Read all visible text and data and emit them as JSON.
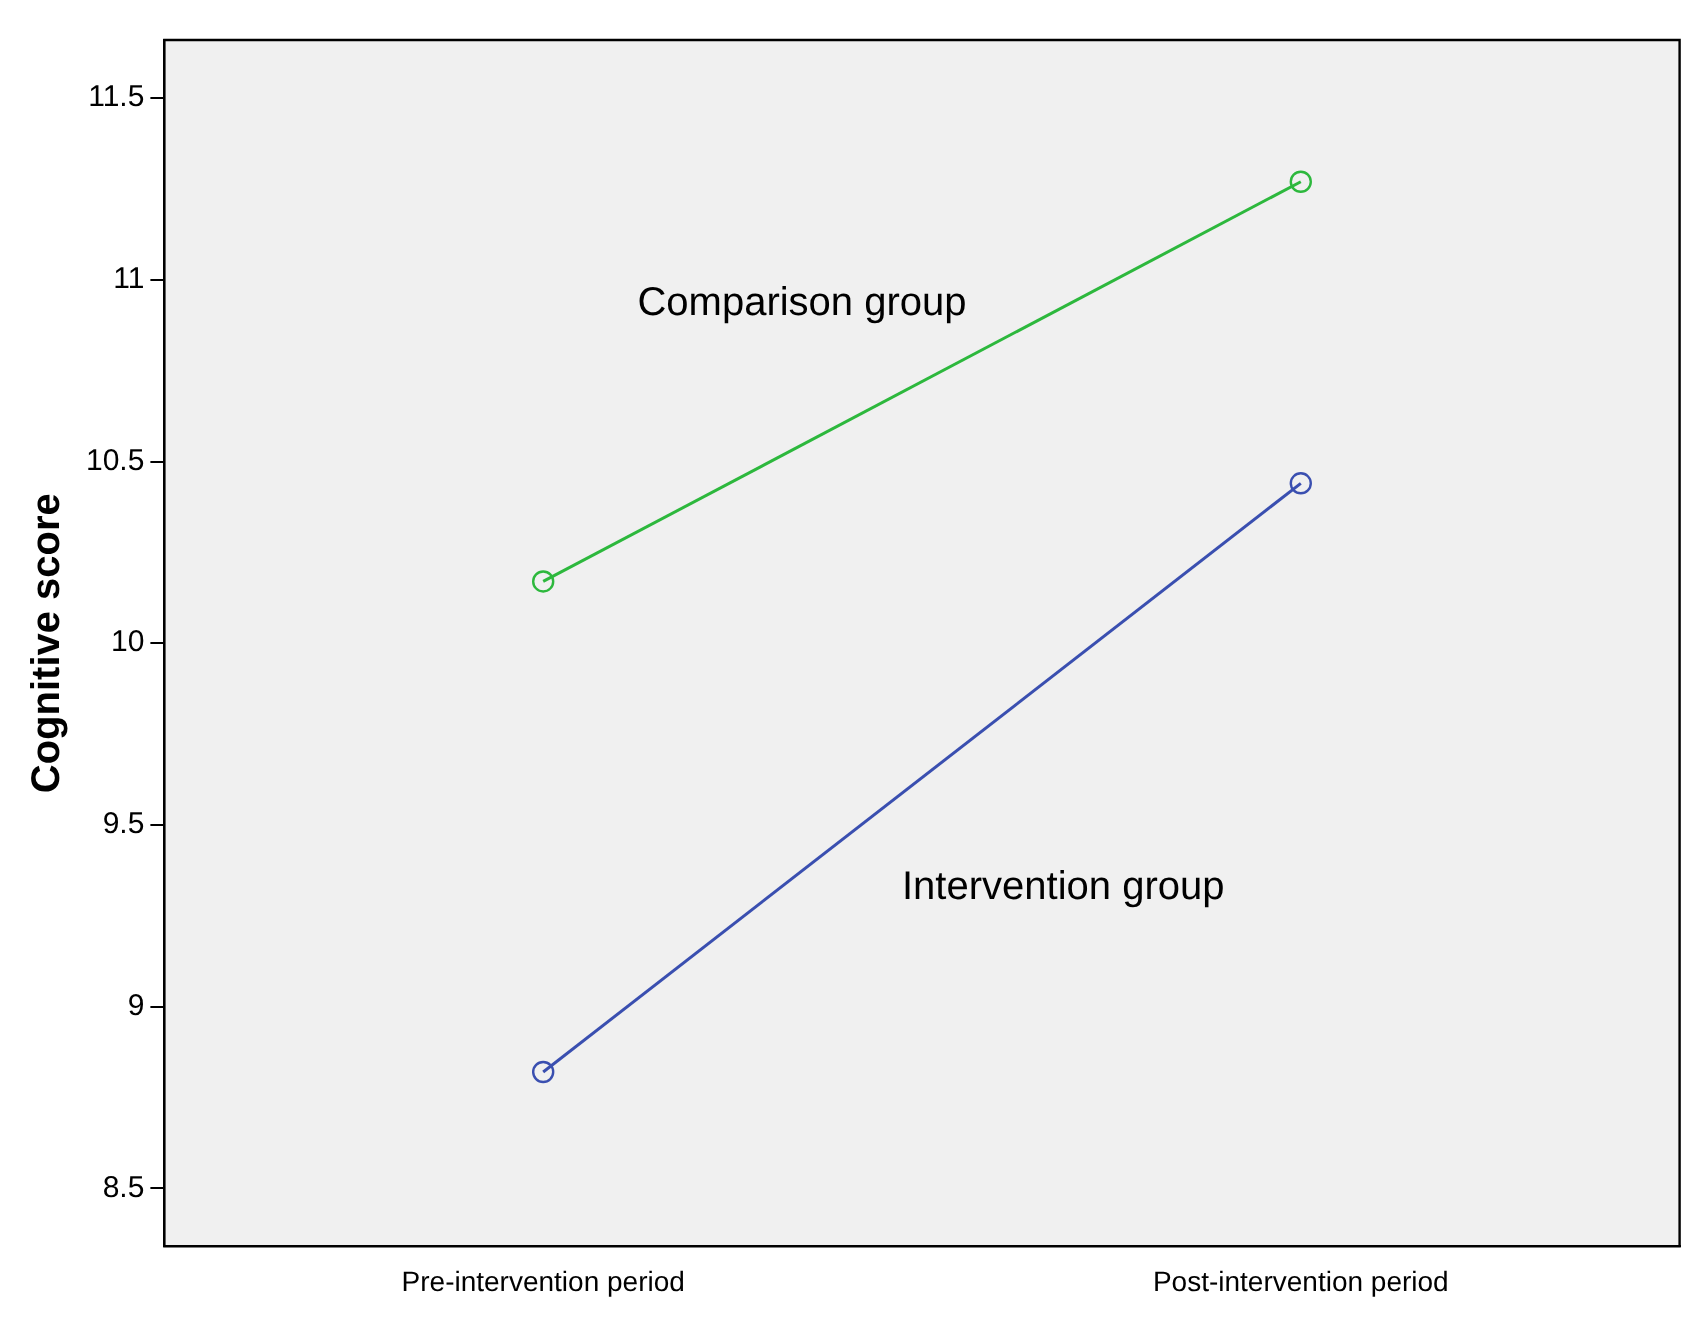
{
  "chart_data": {
    "type": "line",
    "ylabel": "Cognitive score",
    "categories": [
      "Pre-intervention period",
      "Post-intervention period"
    ],
    "series": [
      {
        "name": "Comparison group",
        "color": "#2db83d",
        "values": [
          10.17,
          11.27
        ]
      },
      {
        "name": "Intervention group",
        "color": "#3a4fb0",
        "values": [
          8.82,
          10.44
        ]
      }
    ],
    "ylim": [
      8.34,
      11.66
    ],
    "yticks": [
      8.5,
      9,
      9.5,
      10,
      10.5,
      11,
      11.5
    ],
    "grid": false,
    "legend": false,
    "marker": "circle",
    "line_style": "solid"
  }
}
